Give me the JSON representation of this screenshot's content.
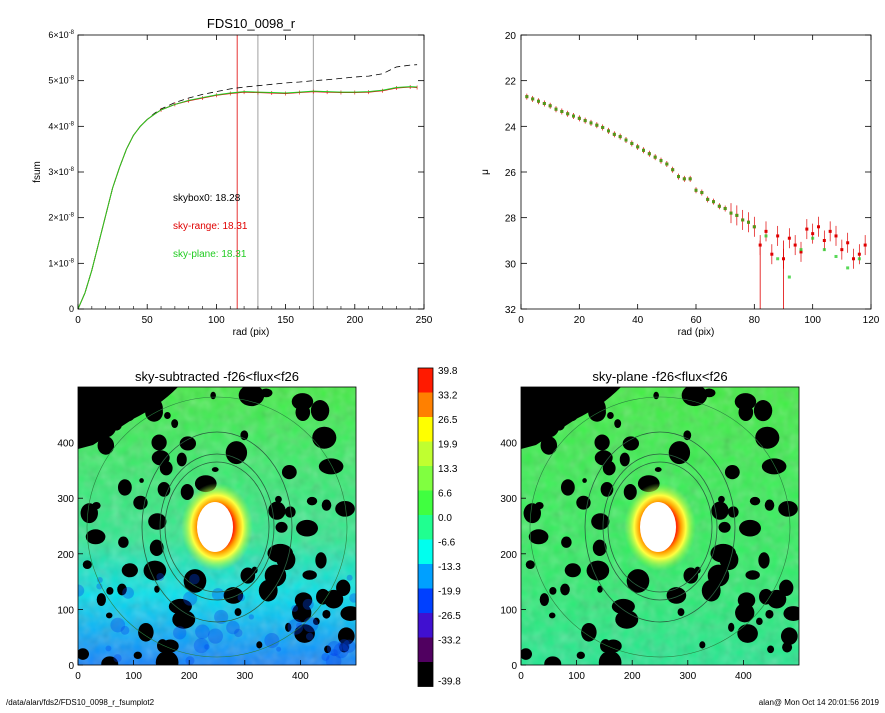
{
  "chart_data": [
    {
      "type": "line",
      "title": "FDS10_0098_r",
      "xlabel": "rad (pix)",
      "ylabel": "fsum",
      "xlim": [
        0,
        250
      ],
      "ylim": [
        0,
        6e-08
      ],
      "x_ticks": [
        "0",
        "50",
        "100",
        "150",
        "200",
        "250"
      ],
      "y_ticks": [
        {
          "value": 0,
          "mant": "0",
          "exp": ""
        },
        {
          "value": 1e-08,
          "mant": "1×10",
          "exp": "-8"
        },
        {
          "value": 2e-08,
          "mant": "2×10",
          "exp": "-8"
        },
        {
          "value": 3e-08,
          "mant": "3×10",
          "exp": "-8"
        },
        {
          "value": 4e-08,
          "mant": "4×10",
          "exp": "-8"
        },
        {
          "value": 5e-08,
          "mant": "5×10",
          "exp": "-8"
        },
        {
          "value": 6e-08,
          "mant": "6×10",
          "exp": "-8"
        }
      ],
      "vlines": [
        {
          "x": 115,
          "color": "#e00000"
        },
        {
          "x": 130,
          "color": "#888888"
        },
        {
          "x": 170,
          "color": "#888888"
        }
      ],
      "annotations": [
        {
          "text": "skybox0: 18.28",
          "color": "#000000"
        },
        {
          "text": "sky-range: 18.31",
          "color": "#e00000"
        },
        {
          "text": "sky-plane: 18.31",
          "color": "#22cc22"
        }
      ],
      "series": [
        {
          "style": "dashed",
          "color": "#000000",
          "x": [
            0,
            5,
            10,
            15,
            20,
            25,
            30,
            35,
            40,
            45,
            50,
            55,
            60,
            70,
            80,
            90,
            100,
            110,
            120,
            130,
            140,
            150,
            160,
            170,
            180,
            190,
            200,
            210,
            220,
            230,
            240,
            245
          ],
          "y": [
            0,
            3.5e-09,
            8.5e-09,
            1.45e-08,
            2.05e-08,
            2.65e-08,
            3.1e-08,
            3.5e-08,
            3.8e-08,
            4e-08,
            4.15e-08,
            4.28e-08,
            4.38e-08,
            4.52e-08,
            4.62e-08,
            4.7e-08,
            4.76e-08,
            4.82e-08,
            4.86e-08,
            4.89e-08,
            4.92e-08,
            4.95e-08,
            4.97e-08,
            5e-08,
            5.02e-08,
            5.05e-08,
            5.08e-08,
            5.1e-08,
            5.15e-08,
            5.3e-08,
            5.34e-08,
            5.35e-08
          ]
        },
        {
          "style": "solid",
          "color": "#e00000",
          "x": [
            0,
            5,
            10,
            15,
            20,
            25,
            30,
            35,
            40,
            45,
            50,
            55,
            60,
            70,
            80,
            90,
            100,
            110,
            120,
            130,
            140,
            150,
            160,
            170,
            180,
            190,
            200,
            210,
            220,
            230,
            240,
            245
          ],
          "y": [
            0,
            3.5e-09,
            8.5e-09,
            1.45e-08,
            2.05e-08,
            2.65e-08,
            3.1e-08,
            3.5e-08,
            3.8e-08,
            4e-08,
            4.15e-08,
            4.26e-08,
            4.36e-08,
            4.48e-08,
            4.56e-08,
            4.62e-08,
            4.68e-08,
            4.72e-08,
            4.75e-08,
            4.74e-08,
            4.73e-08,
            4.72e-08,
            4.74e-08,
            4.76e-08,
            4.75e-08,
            4.74e-08,
            4.74e-08,
            4.75e-08,
            4.78e-08,
            4.84e-08,
            4.86e-08,
            4.85e-08
          ]
        },
        {
          "style": "solid",
          "color": "#22cc22",
          "x": [
            0,
            5,
            10,
            15,
            20,
            25,
            30,
            35,
            40,
            45,
            50,
            55,
            60,
            70,
            80,
            90,
            100,
            110,
            120,
            130,
            140,
            150,
            160,
            170,
            180,
            190,
            200,
            210,
            220,
            230,
            240,
            245
          ],
          "y": [
            0,
            3.5e-09,
            8.5e-09,
            1.45e-08,
            2.05e-08,
            2.65e-08,
            3.1e-08,
            3.5e-08,
            3.8e-08,
            4e-08,
            4.15e-08,
            4.26e-08,
            4.36e-08,
            4.48e-08,
            4.57e-08,
            4.63e-08,
            4.69e-08,
            4.73e-08,
            4.76e-08,
            4.75e-08,
            4.74e-08,
            4.73e-08,
            4.75e-08,
            4.77e-08,
            4.76e-08,
            4.75e-08,
            4.75e-08,
            4.76e-08,
            4.79e-08,
            4.85e-08,
            4.87e-08,
            4.86e-08
          ]
        }
      ]
    },
    {
      "type": "scatter",
      "title": "",
      "xlabel": "rad (pix)",
      "ylabel": "μ",
      "xlim": [
        0,
        120
      ],
      "ylim": [
        32,
        20
      ],
      "x_ticks": [
        "0",
        "20",
        "40",
        "60",
        "80",
        "100",
        "120"
      ],
      "y_ticks": [
        "20",
        "22",
        "24",
        "26",
        "28",
        "30",
        "32"
      ],
      "series": [
        {
          "color": "#e00000",
          "x": [
            2,
            4,
            6,
            8,
            10,
            12,
            14,
            16,
            18,
            20,
            22,
            24,
            26,
            28,
            30,
            32,
            34,
            36,
            38,
            40,
            42,
            44,
            46,
            48,
            50,
            52,
            54,
            56,
            58,
            60,
            62,
            64,
            66,
            68,
            70,
            72,
            74,
            76,
            78,
            80,
            82,
            84,
            86,
            88,
            90,
            92,
            94,
            96,
            98,
            100,
            102,
            104,
            106,
            108,
            110,
            112,
            114,
            116,
            118
          ],
          "y": [
            22.7,
            22.8,
            22.9,
            23.0,
            23.1,
            23.25,
            23.35,
            23.45,
            23.55,
            23.65,
            23.75,
            23.85,
            23.95,
            24.05,
            24.2,
            24.35,
            24.45,
            24.6,
            24.75,
            24.9,
            25.05,
            25.2,
            25.35,
            25.5,
            25.65,
            25.9,
            26.2,
            26.3,
            26.3,
            26.8,
            26.9,
            27.2,
            27.3,
            27.5,
            27.6,
            27.8,
            27.9,
            28.1,
            28.2,
            28.4,
            29.2,
            28.6,
            29.6,
            28.8,
            29.8,
            28.9,
            29.2,
            29.5,
            28.5,
            28.7,
            28.4,
            29.0,
            28.6,
            28.8,
            29.4,
            29.1,
            29.8,
            29.6,
            29.2
          ]
        },
        {
          "color": "#22cc22",
          "x": [
            2,
            4,
            6,
            8,
            10,
            12,
            14,
            16,
            18,
            20,
            22,
            24,
            26,
            28,
            30,
            32,
            34,
            36,
            38,
            40,
            42,
            44,
            46,
            48,
            50,
            52,
            54,
            56,
            58,
            60,
            62,
            64,
            66,
            68,
            70,
            72,
            74,
            76,
            78,
            80,
            84,
            88,
            92,
            96,
            100,
            104,
            108,
            112,
            116
          ],
          "y": [
            22.7,
            22.8,
            22.9,
            23.0,
            23.1,
            23.25,
            23.35,
            23.45,
            23.55,
            23.65,
            23.75,
            23.85,
            23.95,
            24.05,
            24.2,
            24.35,
            24.45,
            24.6,
            24.75,
            24.9,
            25.05,
            25.2,
            25.35,
            25.5,
            25.65,
            25.9,
            26.2,
            26.3,
            26.3,
            26.8,
            26.9,
            27.2,
            27.3,
            27.5,
            27.6,
            27.8,
            27.9,
            28.1,
            28.2,
            28.4,
            28.8,
            29.8,
            30.6,
            29.4,
            28.9,
            29.4,
            29.7,
            30.2,
            29.8
          ]
        }
      ]
    },
    {
      "type": "heatmap",
      "title": "sky-subtracted -f26<flux<f26",
      "xlim": [
        0,
        500
      ],
      "ylim": [
        0,
        500
      ],
      "x_ticks": [
        "0",
        "100",
        "200",
        "300",
        "400"
      ],
      "y_ticks": [
        "0",
        "100",
        "200",
        "300",
        "400"
      ]
    },
    {
      "type": "heatmap",
      "title": "sky-plane -f26<flux<f26",
      "xlim": [
        0,
        500
      ],
      "ylim": [
        0,
        500
      ],
      "x_ticks": [
        "0",
        "100",
        "200",
        "300",
        "400"
      ],
      "y_ticks": [
        "0",
        "100",
        "200",
        "300",
        "400"
      ]
    }
  ],
  "colorbar": {
    "labels": [
      "39.8",
      "33.2",
      "26.5",
      "19.9",
      "13.3",
      "6.6",
      "0.0",
      "-6.6",
      "-13.3",
      "-19.9",
      "-26.5",
      "-33.2",
      "-39.8"
    ],
    "colors": [
      "#ff1a00",
      "#ff8000",
      "#ffff00",
      "#c0ff30",
      "#80ff40",
      "#40ff40",
      "#20ff90",
      "#00ffee",
      "#00a0ff",
      "#0040ff",
      "#4010d0",
      "#500060",
      "#000000"
    ]
  },
  "footer": {
    "left": "/data/alan/fds2/FDS10_0098_r_fsumplot2",
    "right": "alan@  Mon Oct 14 20:01:56 2019"
  }
}
